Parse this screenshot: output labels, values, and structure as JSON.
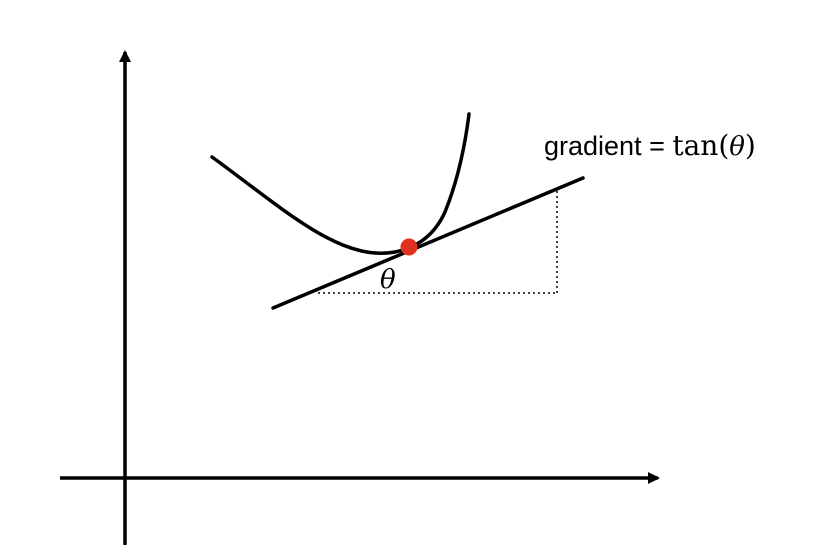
{
  "figure": {
    "label": {
      "prefix": "gradient = ",
      "function_name": "tan",
      "open_paren": "(",
      "argument": "θ",
      "close_paren": ")"
    },
    "angle_label": "θ"
  },
  "colors": {
    "stroke": "#000000",
    "point": "#e0321e",
    "background": "#ffffff"
  }
}
